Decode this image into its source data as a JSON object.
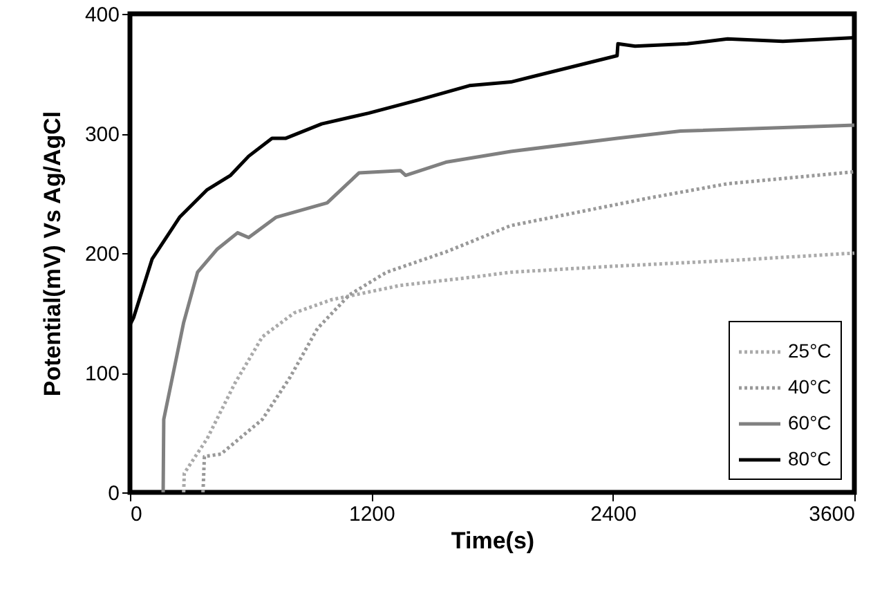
{
  "chart_data": {
    "type": "line",
    "xlabel": "Time(s)",
    "ylabel": "Potential(mV) Vs Ag/AgCl",
    "xlim": [
      0,
      3600
    ],
    "xticks": [
      0,
      1200,
      2400,
      3600
    ],
    "ylim": [
      0,
      400
    ],
    "yticks": [
      0,
      100,
      200,
      300,
      400
    ],
    "grid": false,
    "legend": "bottom right",
    "marker": "none",
    "series": [
      {
        "name": "25°C",
        "color": "#aaaaaa",
        "line_style": "dotted",
        "x": [
          267,
          270,
          384,
          521,
          658,
          816,
          1001,
          1344,
          1708,
          1893,
          2400,
          3000,
          3600
        ],
        "values": [
          0,
          16,
          45,
          91,
          130,
          150,
          161,
          173,
          180,
          184,
          189,
          194,
          200
        ]
      },
      {
        "name": "40°C",
        "color": "#999999",
        "line_style": "dotted",
        "x": [
          363,
          370,
          452,
          658,
          795,
          932,
          1090,
          1275,
          1570,
          1893,
          2578,
          2970,
          3600
        ],
        "values": [
          0,
          30,
          32,
          61,
          96,
          137,
          165,
          184,
          201,
          223,
          246,
          258,
          268
        ]
      },
      {
        "name": "60°C",
        "color": "#808080",
        "line_style": "solid",
        "x": [
          165,
          168,
          267,
          336,
          432,
          535,
          590,
          727,
          980,
          1138,
          1344,
          1370,
          1570,
          1893,
          2421,
          2736,
          3600
        ],
        "values": [
          0,
          61,
          142,
          184,
          203,
          217,
          213,
          230,
          242,
          267,
          269,
          265,
          276,
          285,
          296,
          302,
          307
        ]
      },
      {
        "name": "80°C",
        "color": "#000000",
        "line_style": "solid",
        "x": [
          0,
          18,
          110,
          247,
          384,
          500,
          590,
          706,
          775,
          953,
          1186,
          1433,
          1687,
          1893,
          2421,
          2425,
          2510,
          2770,
          2970,
          3245,
          3600
        ],
        "values": [
          140,
          146,
          195,
          230,
          253,
          265,
          281,
          296,
          296,
          308,
          317,
          328,
          340,
          343,
          365,
          375,
          373,
          375,
          379,
          377,
          380
        ]
      }
    ]
  }
}
